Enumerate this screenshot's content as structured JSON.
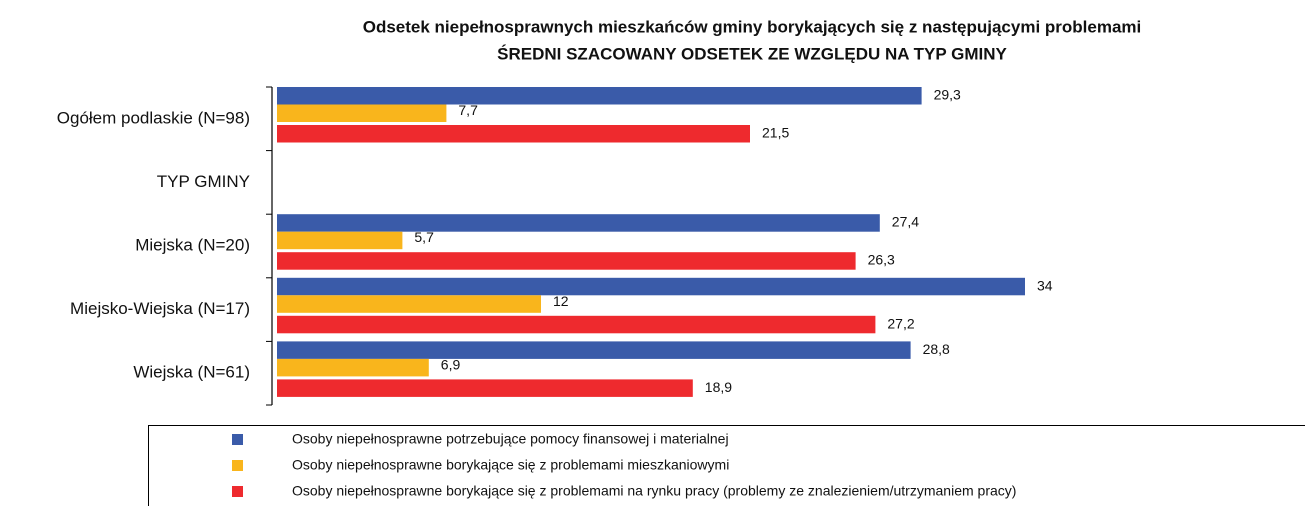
{
  "chart_data": {
    "type": "hbar",
    "title": "Odsetek niepełnosprawnych mieszkańców gminy borykających się z następującymi problemami",
    "subtitle": "ŚREDNI SZACOWANY ODSETEK ZE WZGLĘDU NA TYP GMINY",
    "categories": [
      "Ogółem podlaskie (N=98)",
      "TYP GMINY",
      "Miejska (N=20)",
      "Miejsko-Wiejska (N=17)",
      "Wiejska (N=61)"
    ],
    "series": [
      {
        "name": "Osoby niepełnosprawne potrzebujące pomocy finansowej i materialnej",
        "color": "#3a5ba9",
        "values": [
          29.3,
          null,
          27.4,
          34,
          28.8
        ],
        "value_labels": [
          "29,3",
          null,
          "27,4",
          "34",
          "28,8"
        ]
      },
      {
        "name": "Osoby niepełnosprawne borykające się z problemami mieszkaniowymi",
        "color": "#f9b51c",
        "values": [
          7.7,
          null,
          5.7,
          12,
          6.9
        ],
        "value_labels": [
          "7,7",
          null,
          "5,7",
          "12",
          "6,9"
        ]
      },
      {
        "name": "Osoby niepełnosprawne borykające się z problemami na rynku pracy (problemy ze znalezieniem/utrzymaniem pracy)",
        "color": "#ee2a2e",
        "values": [
          21.5,
          null,
          26.3,
          27.2,
          18.9
        ],
        "value_labels": [
          "21,5",
          null,
          "26,3",
          "27,2",
          "18,9"
        ]
      }
    ]
  }
}
